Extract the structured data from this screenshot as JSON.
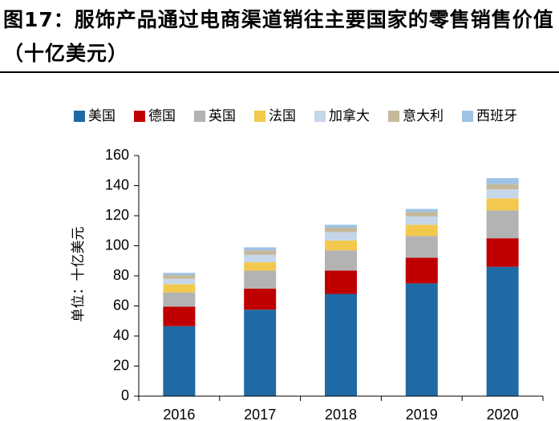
{
  "title": "图17：服饰产品通过电商渠道销往主要国家的零售销售价值（十亿美元）",
  "chart_data": {
    "type": "bar",
    "stacked": true,
    "categories": [
      "2016",
      "2017",
      "2018",
      "2019",
      "2020"
    ],
    "series": [
      {
        "name": "美国",
        "color": "#1f6aa5",
        "values": [
          46.5,
          57.5,
          68,
          75,
          86
        ]
      },
      {
        "name": "德国",
        "color": "#c00000",
        "values": [
          13,
          14,
          15.5,
          17,
          19
        ]
      },
      {
        "name": "英国",
        "color": "#b3b3b3",
        "values": [
          9.5,
          12,
          13.5,
          14.5,
          18.5
        ]
      },
      {
        "name": "法国",
        "color": "#f2c94c",
        "values": [
          5.5,
          5.5,
          6.5,
          7.5,
          8
        ]
      },
      {
        "name": "加拿大",
        "color": "#c6d6ea",
        "values": [
          3.5,
          5,
          5.5,
          5.5,
          6
        ]
      },
      {
        "name": "意大利",
        "color": "#c4b99a",
        "values": [
          2.5,
          3,
          3,
          3,
          3.5
        ]
      },
      {
        "name": "西班牙",
        "color": "#9dc3e6",
        "values": [
          1.5,
          2,
          2,
          2,
          4
        ]
      }
    ],
    "ylabel": "单位：十亿美元",
    "ylim": [
      0,
      160
    ],
    "yticks": [
      0,
      20,
      40,
      60,
      80,
      100,
      120,
      140,
      160
    ],
    "grid": false,
    "legend_position": "top"
  }
}
